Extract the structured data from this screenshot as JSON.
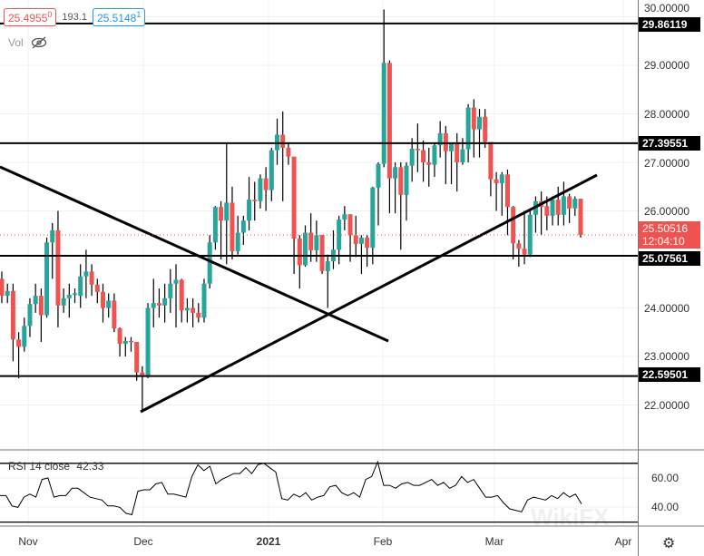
{
  "legend": {
    "bid": "25.4955",
    "bid_sup": "0",
    "spread": "193.1",
    "ask": "25.5148",
    "ask_sup": "1",
    "volume_label": "Vol"
  },
  "indicator": {
    "name": "RSI 14 close",
    "value": "42.33",
    "levels": [
      70,
      30
    ]
  },
  "price_axis": [
    "30.00000",
    "29.00000",
    "28.00000",
    "27.00000",
    "26.00000",
    "24.00000",
    "23.00000",
    "22.00000"
  ],
  "rsi_axis": [
    "60.00",
    "40.00"
  ],
  "level_tags": [
    "29.86119",
    "27.39551",
    "25.07561",
    "22.59501"
  ],
  "current_price": {
    "price": "25.50516",
    "countdown": "12:04:10"
  },
  "time_axis": [
    "Nov",
    "Dec",
    "2021",
    "Feb",
    "Mar",
    "Apr"
  ],
  "watermark": "WikiFX",
  "colors": {
    "up": "#26a69a",
    "down": "#ef5350",
    "grid": "#edf1f5",
    "drawing": "#000000"
  },
  "chart_data": {
    "type": "candlestick",
    "levels": [
      29.86119,
      27.39551,
      25.07561,
      22.59501
    ],
    "ylim": [
      21.4,
      30.3
    ],
    "candles": [
      [
        24.6,
        24.75,
        24.1,
        24.25
      ],
      [
        24.25,
        24.5,
        24.1,
        24.35
      ],
      [
        24.35,
        24.5,
        22.9,
        23.35
      ],
      [
        23.35,
        23.5,
        22.55,
        23.2
      ],
      [
        23.2,
        23.8,
        23.1,
        23.63
      ],
      [
        23.63,
        24.2,
        23.4,
        24.08
      ],
      [
        24.08,
        24.5,
        23.9,
        24.25
      ],
      [
        24.25,
        24.4,
        23.3,
        23.85
      ],
      [
        23.85,
        25.45,
        23.8,
        25.35
      ],
      [
        25.35,
        25.75,
        24.6,
        25.6
      ],
      [
        25.6,
        26.0,
        23.6,
        24.05
      ],
      [
        24.05,
        24.4,
        23.9,
        24.2
      ],
      [
        24.2,
        24.5,
        23.8,
        24.27
      ],
      [
        24.27,
        24.4,
        24.1,
        24.3
      ],
      [
        24.25,
        24.9,
        24.0,
        24.65
      ],
      [
        24.65,
        25.2,
        24.2,
        24.75
      ],
      [
        24.75,
        24.9,
        24.25,
        24.48
      ],
      [
        24.48,
        24.6,
        24.1,
        24.33
      ],
      [
        24.33,
        24.5,
        23.7,
        24.0
      ],
      [
        24.0,
        24.3,
        23.8,
        24.15
      ],
      [
        24.15,
        24.3,
        23.5,
        23.58
      ],
      [
        23.58,
        23.6,
        23.0,
        23.26
      ],
      [
        23.26,
        23.4,
        23.0,
        23.32
      ],
      [
        23.32,
        23.4,
        23.1,
        23.3
      ],
      [
        23.3,
        23.3,
        22.5,
        22.67
      ],
      [
        22.67,
        22.8,
        21.85,
        22.6
      ],
      [
        22.6,
        24.1,
        22.55,
        24.0
      ],
      [
        24.0,
        24.6,
        23.6,
        24.1
      ],
      [
        24.1,
        24.4,
        23.8,
        24.05
      ],
      [
        24.05,
        24.5,
        23.7,
        24.2
      ],
      [
        24.2,
        24.8,
        23.9,
        24.5
      ],
      [
        24.5,
        24.9,
        23.6,
        24.58
      ],
      [
        24.58,
        24.6,
        23.7,
        23.95
      ],
      [
        23.95,
        24.2,
        23.7,
        24.0
      ],
      [
        24.0,
        24.2,
        23.6,
        23.9
      ],
      [
        23.9,
        24.1,
        23.7,
        23.8
      ],
      [
        23.8,
        24.6,
        23.7,
        24.5
      ],
      [
        24.5,
        25.5,
        24.4,
        25.35
      ],
      [
        25.35,
        26.1,
        25.2,
        26.08
      ],
      [
        26.08,
        26.2,
        25.0,
        25.8
      ],
      [
        25.8,
        27.4,
        24.9,
        26.17
      ],
      [
        26.17,
        26.5,
        25.0,
        25.17
      ],
      [
        25.17,
        25.9,
        25.1,
        25.55
      ],
      [
        25.55,
        25.9,
        25.3,
        25.8
      ],
      [
        25.8,
        26.7,
        25.6,
        26.23
      ],
      [
        26.23,
        26.6,
        25.8,
        26.2
      ],
      [
        26.2,
        26.75,
        26.05,
        26.67
      ],
      [
        26.67,
        26.9,
        26.0,
        26.43
      ],
      [
        26.43,
        27.3,
        26.2,
        27.25
      ],
      [
        27.25,
        27.9,
        26.95,
        27.57
      ],
      [
        27.57,
        28.05,
        26.2,
        27.3
      ],
      [
        27.3,
        27.4,
        26.95,
        27.12
      ],
      [
        27.12,
        27.1,
        24.7,
        25.43
      ],
      [
        25.43,
        25.5,
        24.4,
        24.88
      ],
      [
        24.88,
        25.7,
        24.85,
        25.55
      ],
      [
        25.55,
        25.95,
        24.95,
        25.19
      ],
      [
        25.19,
        25.8,
        24.95,
        25.5
      ],
      [
        25.5,
        25.5,
        24.7,
        24.76
      ],
      [
        24.76,
        25.1,
        24.0,
        24.96
      ],
      [
        24.96,
        25.6,
        24.8,
        25.2
      ],
      [
        25.2,
        25.9,
        24.9,
        25.82
      ],
      [
        25.82,
        26.1,
        25.6,
        25.93
      ],
      [
        25.93,
        25.93,
        24.95,
        25.5
      ],
      [
        25.5,
        25.9,
        25.05,
        25.32
      ],
      [
        25.32,
        25.5,
        24.7,
        25.45
      ],
      [
        25.45,
        25.5,
        24.85,
        25.24
      ],
      [
        25.24,
        26.5,
        24.9,
        26.48
      ],
      [
        26.48,
        27.0,
        25.7,
        26.97
      ],
      [
        26.97,
        30.15,
        26.9,
        29.05
      ],
      [
        29.05,
        29.1,
        25.95,
        26.67
      ],
      [
        26.67,
        27.0,
        25.95,
        26.9
      ],
      [
        26.9,
        27.0,
        25.2,
        26.33
      ],
      [
        26.33,
        27.0,
        25.8,
        26.93
      ],
      [
        26.93,
        27.5,
        26.6,
        27.28
      ],
      [
        27.28,
        27.8,
        26.8,
        27.25
      ],
      [
        27.25,
        27.45,
        26.6,
        27.0
      ],
      [
        27.0,
        27.3,
        26.5,
        26.95
      ],
      [
        26.95,
        27.4,
        26.7,
        27.35
      ],
      [
        27.35,
        27.85,
        27.1,
        27.6
      ],
      [
        27.6,
        27.75,
        26.55,
        27.23
      ],
      [
        27.23,
        27.4,
        26.55,
        27.38
      ],
      [
        27.38,
        27.6,
        26.4,
        27.0
      ],
      [
        27.0,
        27.5,
        26.95,
        27.27
      ],
      [
        27.27,
        28.2,
        27.0,
        28.13
      ],
      [
        28.13,
        28.3,
        27.1,
        27.68
      ],
      [
        27.68,
        28.1,
        27.1,
        27.94
      ],
      [
        27.94,
        28.1,
        27.3,
        27.42
      ],
      [
        27.42,
        27.4,
        26.3,
        26.65
      ],
      [
        26.65,
        26.8,
        26.0,
        26.57
      ],
      [
        26.57,
        26.8,
        25.9,
        26.75
      ],
      [
        26.75,
        26.85,
        25.5,
        26.08
      ],
      [
        26.08,
        26.1,
        25.0,
        25.33
      ],
      [
        25.33,
        25.4,
        24.85,
        25.22
      ],
      [
        25.22,
        26.0,
        24.9,
        25.1
      ],
      [
        25.1,
        26.0,
        25.05,
        25.92
      ],
      [
        25.92,
        26.3,
        25.55,
        26.2
      ],
      [
        26.2,
        26.4,
        25.5,
        26.08
      ],
      [
        26.1,
        26.3,
        25.6,
        25.9
      ],
      [
        25.9,
        26.3,
        25.7,
        26.23
      ],
      [
        26.23,
        26.5,
        25.7,
        25.92
      ],
      [
        25.92,
        26.6,
        25.7,
        26.3
      ],
      [
        26.3,
        26.35,
        25.75,
        26.05
      ],
      [
        26.05,
        26.3,
        25.9,
        26.25
      ],
      [
        26.25,
        26.25,
        25.45,
        25.50516
      ]
    ],
    "rsi": [
      48,
      48,
      41,
      40,
      47,
      49,
      47,
      59,
      60,
      47,
      48,
      48,
      53,
      53,
      50,
      47,
      46,
      45,
      41,
      41,
      40,
      36,
      35,
      51,
      52,
      52,
      56,
      57,
      49,
      49,
      48,
      47,
      61,
      69,
      65,
      68,
      56,
      59,
      61,
      63,
      63,
      67,
      63,
      69,
      70,
      67,
      64,
      46,
      45,
      49,
      47,
      50,
      45,
      47,
      48,
      54,
      55,
      50,
      48,
      50,
      47,
      59,
      61,
      71,
      55,
      55,
      53,
      56,
      57,
      55,
      55,
      57,
      59,
      55,
      57,
      53,
      55,
      61,
      57,
      59,
      53,
      47,
      47,
      48,
      43,
      39,
      38,
      37,
      45,
      47,
      46,
      45,
      48,
      46,
      50,
      47,
      49,
      42.33
    ],
    "rsi_ylim": [
      28,
      75
    ]
  }
}
